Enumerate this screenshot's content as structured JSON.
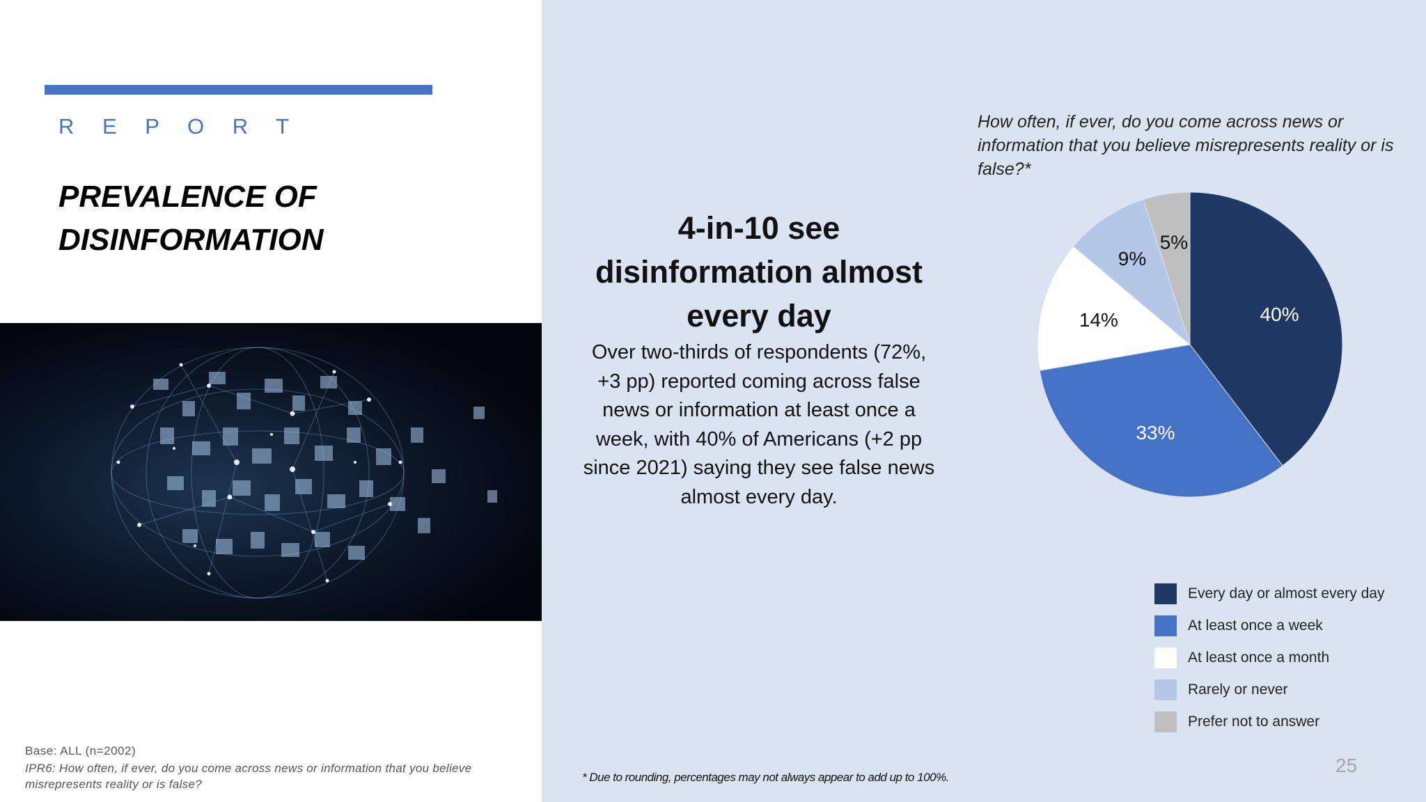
{
  "slide": {
    "section_label": "R E P O R T",
    "title_line1": "PREVALENCE OF",
    "title_line2": "DISINFORMATION",
    "headline_line1": "4-in-10 see",
    "headline_line2": "disinformation almost",
    "headline_line3": "every day",
    "body_line1": "Over two-thirds of respondents (72%,",
    "body_line2": "+3 pp) reported coming across false",
    "body_line3": "news or information at least once a",
    "body_line4": "week, with 40% of Americans (+2 pp",
    "body_line5": "since 2021) saying they see false news",
    "body_line6": "almost every day.",
    "base_note": "Base: ALL (n=2002)",
    "question_note_line1": "IPR6: How often, if ever,  do you come across news or information that you believe",
    "question_note_line2": "misrepresents  reality or is false?",
    "rounding_note": "* Due to rounding, percentages may not always appear to add up to 100%.",
    "page_number": "25"
  },
  "chart_data": {
    "type": "pie",
    "title_line1": "How often, if ever, do you come across news or",
    "title_line2": "information that you believe misrepresents reality or is",
    "title_line3": "false?*",
    "categories": [
      "Every day or almost every day",
      "At least once a week",
      "At least once a month",
      "Rarely or never",
      "Prefer not to answer"
    ],
    "values": [
      40,
      33,
      14,
      9,
      5
    ],
    "value_labels": [
      "40%",
      "33%",
      "14%",
      "9%",
      "5%"
    ],
    "colors": [
      "#203864",
      "#4472c4",
      "#ffffff",
      "#b4c7e7",
      "#bfbfbf"
    ],
    "label_colors": [
      "#ffffff",
      "#ffffff",
      "#111111",
      "#111111",
      "#111111"
    ],
    "start": "12 o'clock",
    "direction": "clockwise",
    "legend_position": "bottom-right"
  }
}
